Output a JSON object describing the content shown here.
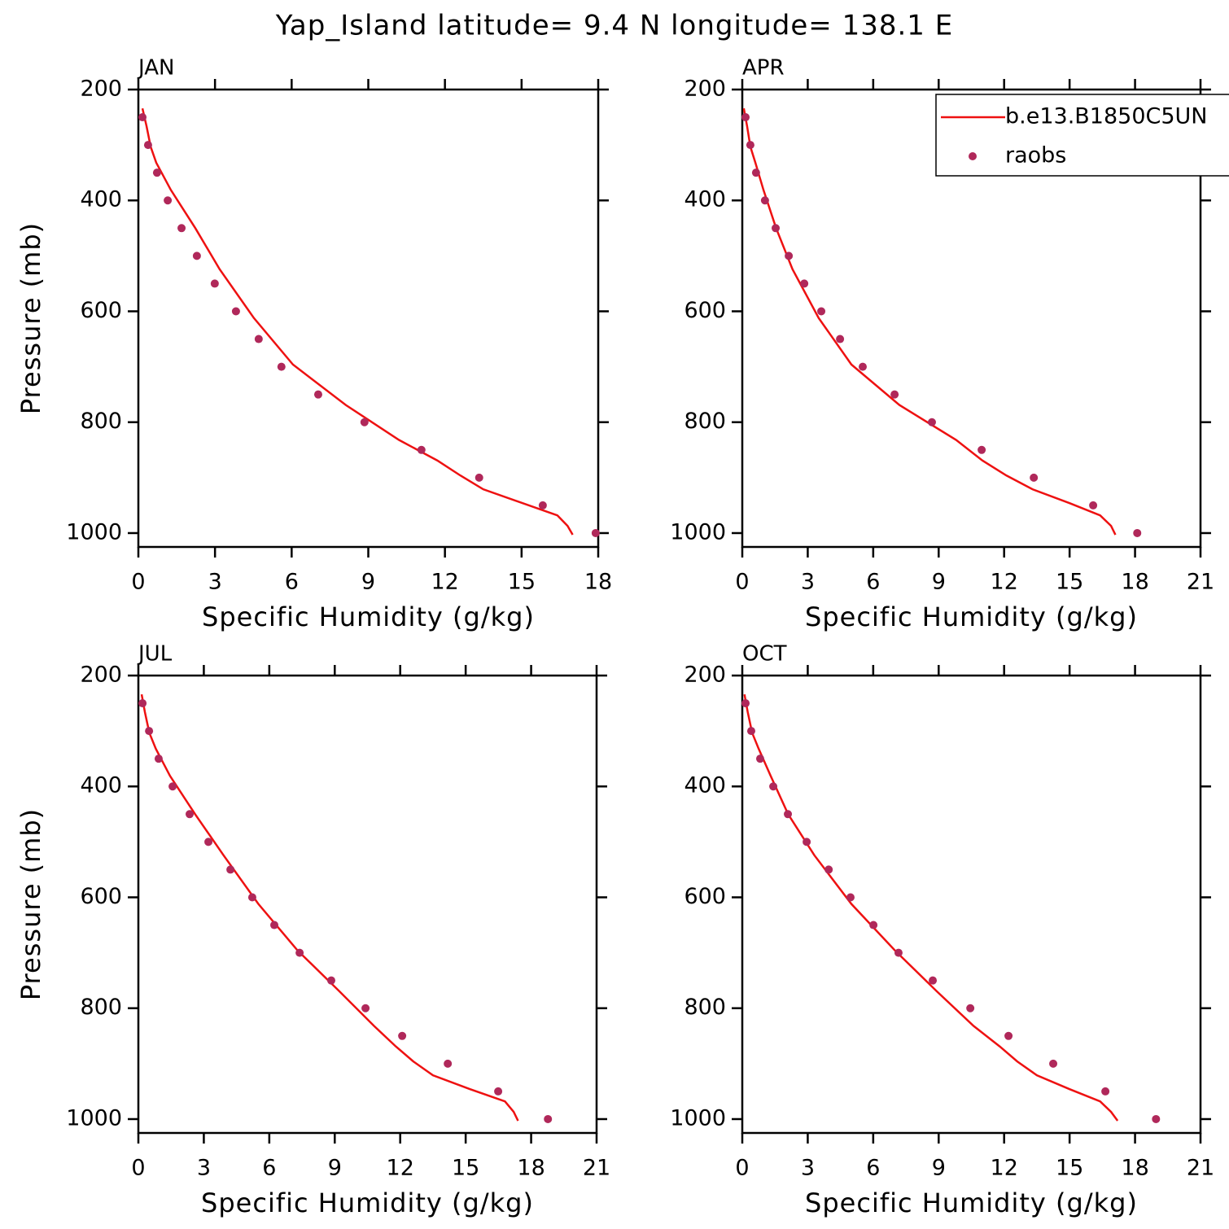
{
  "title": "Yap_Island  latitude= 9.4 N longitude= 138.1 E",
  "chart_data": [
    {
      "type": "line",
      "subtitle": "JAN",
      "xlabel": "Specific Humidity (g/kg)",
      "ylabel": "Pressure (mb)",
      "xlim": [
        0,
        18
      ],
      "xticks": [
        0,
        3,
        6,
        9,
        12,
        15,
        18
      ],
      "ylim": [
        1025,
        200
      ],
      "yticks": [
        200,
        400,
        600,
        800,
        1000
      ],
      "series": [
        {
          "type": "line",
          "color": "#ee1111",
          "x": [
            0.16,
            0.32,
            0.48,
            0.7,
            1.27,
            2.23,
            3.18,
            4.52,
            6.05,
            8.12,
            10.2,
            11.7,
            12.6,
            13.5,
            16.4,
            16.8,
            17.0
          ],
          "y": [
            234,
            266,
            303,
            332,
            381,
            450,
            524,
            612,
            696,
            769,
            832,
            869,
            896,
            921,
            968,
            987,
            1003
          ]
        },
        {
          "type": "scatter",
          "color": "#b0285a",
          "x": [
            0.16,
            0.38,
            0.73,
            1.15,
            1.69,
            2.29,
            2.99,
            3.82,
            4.71,
            5.6,
            7.04,
            8.85,
            11.08,
            13.34,
            15.83,
            17.9
          ],
          "y": [
            250,
            300,
            350,
            400,
            450,
            500,
            550,
            600,
            650,
            700,
            750,
            800,
            850,
            900,
            950,
            1000
          ]
        }
      ]
    },
    {
      "type": "line",
      "subtitle": "APR",
      "xlabel": "Specific Humidity (g/kg)",
      "legend": "upper right",
      "xlim": [
        0,
        21
      ],
      "xticks": [
        0,
        3,
        6,
        9,
        12,
        15,
        18,
        21
      ],
      "ylim": [
        1025,
        200
      ],
      "yticks": [
        200,
        400,
        600,
        800,
        1000
      ],
      "series": [
        {
          "name": "b.e13.B1850C5UN",
          "type": "line",
          "color": "#ee1111",
          "x": [
            0.07,
            0.22,
            0.37,
            0.6,
            0.97,
            1.55,
            2.3,
            3.5,
            5.0,
            7.2,
            9.8,
            11.0,
            12.1,
            13.3,
            15.0,
            16.4,
            16.9,
            17.1
          ],
          "y": [
            234,
            266,
            303,
            332,
            381,
            450,
            524,
            612,
            696,
            769,
            832,
            869,
            896,
            921,
            946,
            968,
            987,
            1003
          ]
        },
        {
          "name": "raobs",
          "type": "scatter",
          "color": "#b0285a",
          "x": [
            0.15,
            0.37,
            0.63,
            1.04,
            1.53,
            2.13,
            2.84,
            3.62,
            4.48,
            5.52,
            6.98,
            8.69,
            10.97,
            13.36,
            16.08,
            18.1
          ],
          "y": [
            250,
            300,
            350,
            400,
            450,
            500,
            550,
            600,
            650,
            700,
            750,
            800,
            850,
            900,
            950,
            1000
          ]
        }
      ]
    },
    {
      "type": "line",
      "subtitle": "JUL",
      "xlabel": "Specific Humidity (g/kg)",
      "ylabel": "Pressure (mb)",
      "xlim": [
        0,
        21
      ],
      "xticks": [
        0,
        3,
        6,
        9,
        12,
        15,
        18,
        21
      ],
      "ylim": [
        1025,
        200
      ],
      "yticks": [
        200,
        400,
        600,
        800,
        1000
      ],
      "series": [
        {
          "type": "line",
          "color": "#ee1111",
          "x": [
            0.15,
            0.3,
            0.5,
            0.8,
            1.45,
            2.6,
            3.9,
            5.5,
            7.3,
            9.2,
            10.8,
            11.8,
            12.6,
            13.5,
            15.2,
            16.8,
            17.2,
            17.4
          ],
          "y": [
            234,
            266,
            303,
            332,
            381,
            450,
            524,
            612,
            696,
            769,
            832,
            869,
            896,
            921,
            946,
            968,
            987,
            1003
          ]
        },
        {
          "type": "scatter",
          "color": "#b0285a",
          "x": [
            0.19,
            0.49,
            0.93,
            1.57,
            2.35,
            3.21,
            4.22,
            5.22,
            6.23,
            7.39,
            8.84,
            10.41,
            12.09,
            14.18,
            16.49,
            18.77
          ],
          "y": [
            250,
            300,
            350,
            400,
            450,
            500,
            550,
            600,
            650,
            700,
            750,
            800,
            850,
            900,
            950,
            1000
          ]
        }
      ]
    },
    {
      "type": "line",
      "subtitle": "OCT",
      "xlabel": "Specific Humidity (g/kg)",
      "xlim": [
        0,
        21
      ],
      "xticks": [
        0,
        3,
        6,
        9,
        12,
        15,
        18,
        21
      ],
      "ylim": [
        1025,
        200
      ],
      "yticks": [
        200,
        400,
        600,
        800,
        1000
      ],
      "series": [
        {
          "type": "line",
          "color": "#ee1111",
          "x": [
            0.1,
            0.25,
            0.45,
            0.75,
            1.3,
            2.1,
            3.3,
            5.0,
            7.0,
            8.9,
            10.6,
            11.8,
            12.6,
            13.5,
            15.0,
            16.4,
            16.9,
            17.2
          ],
          "y": [
            234,
            266,
            303,
            332,
            381,
            450,
            524,
            612,
            696,
            769,
            832,
            869,
            896,
            921,
            946,
            968,
            987,
            1003
          ]
        },
        {
          "type": "scatter",
          "color": "#b0285a",
          "x": [
            0.15,
            0.41,
            0.82,
            1.42,
            2.09,
            2.95,
            3.96,
            4.96,
            6.01,
            7.16,
            8.73,
            10.45,
            12.2,
            14.25,
            16.64,
            18.96
          ],
          "y": [
            250,
            300,
            350,
            400,
            450,
            500,
            550,
            600,
            650,
            700,
            750,
            800,
            850,
            900,
            950,
            1000
          ]
        }
      ]
    }
  ]
}
